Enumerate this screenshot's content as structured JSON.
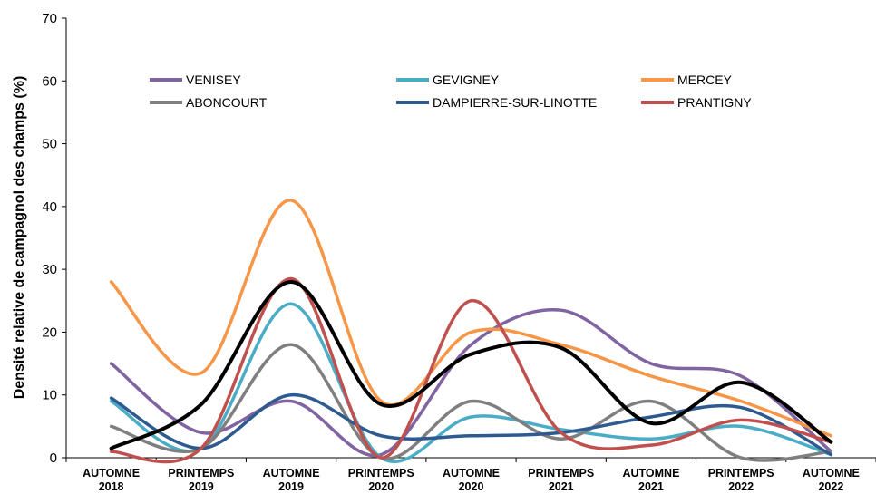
{
  "chart_data": {
    "type": "line",
    "title": "",
    "xlabel": "",
    "ylabel": "Densité relative de campagnol des champs (%)",
    "ylim": [
      0,
      70
    ],
    "yticks": [
      0,
      10,
      20,
      30,
      40,
      50,
      60,
      70
    ],
    "grid": false,
    "legend_position": "top",
    "categories": [
      [
        "AUTOMNE",
        "2018"
      ],
      [
        "PRINTEMPS",
        "2019"
      ],
      [
        "AUTOMNE",
        "2019"
      ],
      [
        "PRINTEMPS",
        "2020"
      ],
      [
        "AUTOMNE",
        "2020"
      ],
      [
        "PRINTEMPS",
        "2021"
      ],
      [
        "AUTOMNE",
        "2021"
      ],
      [
        "PRINTEMPS",
        "2022"
      ],
      [
        "AUTOMNE",
        "2022"
      ]
    ],
    "series": [
      {
        "name": "VENISEY",
        "color": "#8064a2",
        "values": [
          15,
          4,
          9,
          0.5,
          18,
          23.5,
          15,
          13,
          1
        ]
      },
      {
        "name": "GEVIGNEY",
        "color": "#4bacc6",
        "values": [
          9,
          1.5,
          24.5,
          0,
          6.5,
          4.5,
          3,
          5,
          0.5
        ]
      },
      {
        "name": "MERCEY",
        "color": "#f79646",
        "values": [
          28,
          13.5,
          41,
          9,
          20,
          18,
          13,
          9,
          3.5
        ]
      },
      {
        "name": "ABONCOURT",
        "color": "#7f7f7f",
        "values": [
          5,
          1.5,
          18,
          0,
          9,
          3,
          9,
          0,
          1
        ]
      },
      {
        "name": "DAMPIERRE-SUR-LINOTTE",
        "color": "#2e5b8f",
        "values": [
          9.5,
          1.5,
          10,
          3.5,
          3.5,
          4,
          6.5,
          8,
          0.5
        ]
      },
      {
        "name": "PRANTIGNY",
        "color": "#c0504d",
        "values": [
          1,
          1.5,
          28.5,
          0,
          25,
          4,
          2,
          6,
          2.5
        ]
      },
      {
        "name": "",
        "color": "#000000",
        "values": [
          1.5,
          8.5,
          28,
          8.5,
          16.5,
          17.5,
          5.5,
          12,
          2.5
        ]
      }
    ]
  }
}
